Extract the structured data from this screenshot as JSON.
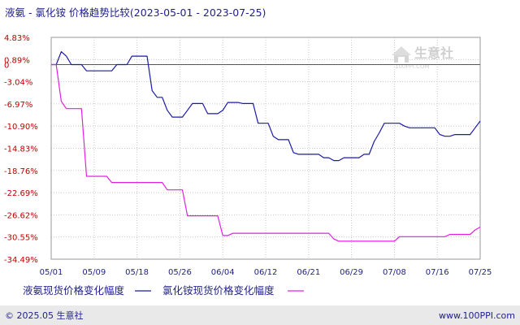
{
  "title": "液氨 - 氯化铵 价格趋势比较(2023-05-01 - 2023-07-25)",
  "watermark": {
    "text": "生意社",
    "sub": "100PPI.COM"
  },
  "footer": {
    "left": "© 2025.05 生意社",
    "right": "www.100PPI.com"
  },
  "colors": {
    "series1": "#1a1aa8",
    "series2": "#e020e0",
    "zero_line": "#555555",
    "grid": "#c8c8c8",
    "background": "#ffffff",
    "panel": "#f4f4f4"
  },
  "chart_data": {
    "type": "line",
    "title": "液氨 - 氯化铵 价格趋势比较(2023-05-01 - 2023-07-25)",
    "xlabel": "",
    "ylabel": "",
    "grid": true,
    "legend_position": "bottom",
    "yticks": [
      "4.83%",
      "0.89%",
      "-3.04%",
      "-6.97%",
      "-10.90%",
      "-14.83%",
      "-18.76%",
      "-22.69%",
      "-26.62%",
      "-30.55%",
      "-34.49%"
    ],
    "ytick_values": [
      4.83,
      0.89,
      -3.04,
      -6.97,
      -10.9,
      -14.83,
      -18.76,
      -22.69,
      -26.62,
      -30.55,
      -34.49
    ],
    "extra_ytick": {
      "label": "0",
      "value": 0
    },
    "ylim": [
      -34.49,
      4.83
    ],
    "xticks": [
      "05/01",
      "05/09",
      "05/18",
      "05/26",
      "06/04",
      "06/12",
      "06/21",
      "06/29",
      "07/08",
      "07/16",
      "07/25"
    ],
    "xlim": [
      "2023-05-01",
      "2023-07-25"
    ],
    "series": [
      {
        "name": "液氨现货价格变化幅度",
        "points": [
          [
            "2023-05-01",
            0
          ],
          [
            "2023-05-02",
            0
          ],
          [
            "2023-05-03",
            2.3
          ],
          [
            "2023-05-04",
            1.5
          ],
          [
            "2023-05-05",
            0
          ],
          [
            "2023-05-06",
            0
          ],
          [
            "2023-05-07",
            0
          ],
          [
            "2023-05-08",
            -1.1
          ],
          [
            "2023-05-09",
            -1.1
          ],
          [
            "2023-05-10",
            -1.1
          ],
          [
            "2023-05-11",
            -1.1
          ],
          [
            "2023-05-12",
            -1.1
          ],
          [
            "2023-05-13",
            -1.1
          ],
          [
            "2023-05-14",
            0
          ],
          [
            "2023-05-15",
            0
          ],
          [
            "2023-05-16",
            0
          ],
          [
            "2023-05-17",
            1.5
          ],
          [
            "2023-05-18",
            1.5
          ],
          [
            "2023-05-19",
            1.5
          ],
          [
            "2023-05-20",
            1.5
          ],
          [
            "2023-05-21",
            -4.6
          ],
          [
            "2023-05-22",
            -5.8
          ],
          [
            "2023-05-23",
            -5.8
          ],
          [
            "2023-05-24",
            -8.1
          ],
          [
            "2023-05-25",
            -9.3
          ],
          [
            "2023-05-26",
            -9.3
          ],
          [
            "2023-05-27",
            -9.3
          ],
          [
            "2023-05-28",
            -8.1
          ],
          [
            "2023-05-29",
            -6.9
          ],
          [
            "2023-05-30",
            -6.9
          ],
          [
            "2023-05-31",
            -6.9
          ],
          [
            "2023-06-01",
            -8.7
          ],
          [
            "2023-06-02",
            -8.7
          ],
          [
            "2023-06-03",
            -8.7
          ],
          [
            "2023-06-04",
            -8.1
          ],
          [
            "2023-06-05",
            -6.7
          ],
          [
            "2023-06-06",
            -6.7
          ],
          [
            "2023-06-07",
            -6.7
          ],
          [
            "2023-06-08",
            -6.9
          ],
          [
            "2023-06-09",
            -6.9
          ],
          [
            "2023-06-10",
            -6.9
          ],
          [
            "2023-06-11",
            -10.4
          ],
          [
            "2023-06-12",
            -10.4
          ],
          [
            "2023-06-13",
            -10.4
          ],
          [
            "2023-06-14",
            -12.7
          ],
          [
            "2023-06-15",
            -13.3
          ],
          [
            "2023-06-16",
            -13.3
          ],
          [
            "2023-06-17",
            -13.3
          ],
          [
            "2023-06-18",
            -15.6
          ],
          [
            "2023-06-19",
            -15.9
          ],
          [
            "2023-06-20",
            -15.9
          ],
          [
            "2023-06-21",
            -15.9
          ],
          [
            "2023-06-22",
            -15.9
          ],
          [
            "2023-06-23",
            -15.9
          ],
          [
            "2023-06-24",
            -16.5
          ],
          [
            "2023-06-25",
            -16.5
          ],
          [
            "2023-06-26",
            -17.0
          ],
          [
            "2023-06-27",
            -17.0
          ],
          [
            "2023-06-28",
            -16.5
          ],
          [
            "2023-06-29",
            -16.5
          ],
          [
            "2023-06-30",
            -16.5
          ],
          [
            "2023-07-01",
            -16.5
          ],
          [
            "2023-07-02",
            -15.9
          ],
          [
            "2023-07-03",
            -15.9
          ],
          [
            "2023-07-04",
            -13.6
          ],
          [
            "2023-07-05",
            -12.1
          ],
          [
            "2023-07-06",
            -10.4
          ],
          [
            "2023-07-07",
            -10.4
          ],
          [
            "2023-07-08",
            -10.4
          ],
          [
            "2023-07-09",
            -10.4
          ],
          [
            "2023-07-10",
            -10.9
          ],
          [
            "2023-07-11",
            -11.2
          ],
          [
            "2023-07-12",
            -11.2
          ],
          [
            "2023-07-13",
            -11.2
          ],
          [
            "2023-07-14",
            -11.2
          ],
          [
            "2023-07-15",
            -11.2
          ],
          [
            "2023-07-16",
            -11.2
          ],
          [
            "2023-07-17",
            -12.4
          ],
          [
            "2023-07-18",
            -12.7
          ],
          [
            "2023-07-19",
            -12.7
          ],
          [
            "2023-07-20",
            -12.4
          ],
          [
            "2023-07-21",
            -12.4
          ],
          [
            "2023-07-22",
            -12.4
          ],
          [
            "2023-07-23",
            -12.4
          ],
          [
            "2023-07-24",
            -11.2
          ],
          [
            "2023-07-25",
            -10.0
          ]
        ]
      },
      {
        "name": "氯化铵现货价格变化幅度",
        "points": [
          [
            "2023-05-01",
            0
          ],
          [
            "2023-05-02",
            0
          ],
          [
            "2023-05-03",
            -6.5
          ],
          [
            "2023-05-04",
            -7.8
          ],
          [
            "2023-05-05",
            -7.8
          ],
          [
            "2023-05-06",
            -7.8
          ],
          [
            "2023-05-07",
            -7.8
          ],
          [
            "2023-05-08",
            -19.8
          ],
          [
            "2023-05-09",
            -19.8
          ],
          [
            "2023-05-10",
            -19.8
          ],
          [
            "2023-05-11",
            -19.8
          ],
          [
            "2023-05-12",
            -19.8
          ],
          [
            "2023-05-13",
            -20.9
          ],
          [
            "2023-05-14",
            -20.9
          ],
          [
            "2023-05-15",
            -20.9
          ],
          [
            "2023-05-16",
            -20.9
          ],
          [
            "2023-05-17",
            -20.9
          ],
          [
            "2023-05-18",
            -20.9
          ],
          [
            "2023-05-19",
            -20.9
          ],
          [
            "2023-05-20",
            -20.9
          ],
          [
            "2023-05-21",
            -20.9
          ],
          [
            "2023-05-22",
            -20.9
          ],
          [
            "2023-05-23",
            -20.9
          ],
          [
            "2023-05-24",
            -22.2
          ],
          [
            "2023-05-25",
            -22.2
          ],
          [
            "2023-05-26",
            -22.2
          ],
          [
            "2023-05-27",
            -22.2
          ],
          [
            "2023-05-28",
            -26.8
          ],
          [
            "2023-05-29",
            -26.8
          ],
          [
            "2023-05-30",
            -26.8
          ],
          [
            "2023-05-31",
            -26.8
          ],
          [
            "2023-06-01",
            -26.8
          ],
          [
            "2023-06-02",
            -26.8
          ],
          [
            "2023-06-03",
            -26.8
          ],
          [
            "2023-06-04",
            -30.3
          ],
          [
            "2023-06-05",
            -30.3
          ],
          [
            "2023-06-06",
            -29.9
          ],
          [
            "2023-06-07",
            -29.9
          ],
          [
            "2023-06-08",
            -29.9
          ],
          [
            "2023-06-09",
            -29.9
          ],
          [
            "2023-06-10",
            -29.9
          ],
          [
            "2023-06-11",
            -29.9
          ],
          [
            "2023-06-12",
            -29.9
          ],
          [
            "2023-06-13",
            -29.9
          ],
          [
            "2023-06-14",
            -29.9
          ],
          [
            "2023-06-15",
            -29.9
          ],
          [
            "2023-06-16",
            -29.9
          ],
          [
            "2023-06-17",
            -29.9
          ],
          [
            "2023-06-18",
            -29.9
          ],
          [
            "2023-06-19",
            -29.9
          ],
          [
            "2023-06-20",
            -29.9
          ],
          [
            "2023-06-21",
            -29.9
          ],
          [
            "2023-06-22",
            -29.9
          ],
          [
            "2023-06-23",
            -29.9
          ],
          [
            "2023-06-24",
            -29.9
          ],
          [
            "2023-06-25",
            -29.9
          ],
          [
            "2023-06-26",
            -30.9
          ],
          [
            "2023-06-27",
            -31.3
          ],
          [
            "2023-06-28",
            -31.3
          ],
          [
            "2023-06-29",
            -31.3
          ],
          [
            "2023-06-30",
            -31.3
          ],
          [
            "2023-07-01",
            -31.3
          ],
          [
            "2023-07-02",
            -31.3
          ],
          [
            "2023-07-03",
            -31.3
          ],
          [
            "2023-07-04",
            -31.3
          ],
          [
            "2023-07-05",
            -31.3
          ],
          [
            "2023-07-06",
            -31.3
          ],
          [
            "2023-07-07",
            -31.3
          ],
          [
            "2023-07-08",
            -31.3
          ],
          [
            "2023-07-09",
            -30.5
          ],
          [
            "2023-07-10",
            -30.5
          ],
          [
            "2023-07-11",
            -30.5
          ],
          [
            "2023-07-12",
            -30.5
          ],
          [
            "2023-07-13",
            -30.5
          ],
          [
            "2023-07-14",
            -30.5
          ],
          [
            "2023-07-15",
            -30.5
          ],
          [
            "2023-07-16",
            -30.5
          ],
          [
            "2023-07-17",
            -30.5
          ],
          [
            "2023-07-18",
            -30.5
          ],
          [
            "2023-07-19",
            -30.1
          ],
          [
            "2023-07-20",
            -30.1
          ],
          [
            "2023-07-21",
            -30.1
          ],
          [
            "2023-07-22",
            -30.1
          ],
          [
            "2023-07-23",
            -30.1
          ],
          [
            "2023-07-24",
            -29.3
          ],
          [
            "2023-07-25",
            -28.8
          ]
        ]
      }
    ]
  }
}
